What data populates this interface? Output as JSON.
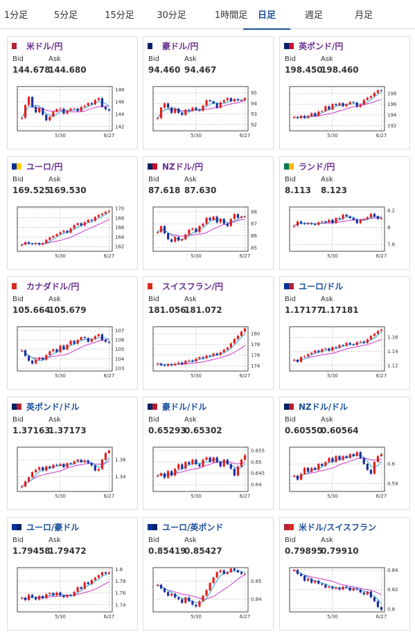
{
  "tabs": [
    {
      "label": "1分足",
      "active": false
    },
    {
      "label": "5分足",
      "active": false
    },
    {
      "label": "15分足",
      "active": false
    },
    {
      "label": "30分足",
      "active": false
    },
    {
      "label": "1時間足",
      "active": false
    },
    {
      "label": "日足",
      "active": true
    },
    {
      "label": "週足",
      "active": false
    },
    {
      "label": "月足",
      "active": false
    }
  ],
  "labels": {
    "bid": "Bid",
    "ask": "Ask"
  },
  "chart_data": [
    {
      "type": "candlestick",
      "pair": "米ドル/円",
      "flag": [
        "#b22234",
        "#ffffff"
      ],
      "bid": "144.678",
      "ask": "144.680",
      "x_ticks": [
        "5/30",
        "6/27"
      ],
      "y_ticks": [
        142,
        144,
        146,
        148
      ],
      "ylim": [
        141.3,
        148.5
      ],
      "values": [
        143.4,
        145.5,
        146.8,
        145.2,
        144.3,
        145.0,
        143.9,
        143.0,
        143.6,
        144.4,
        144.8,
        144.9,
        144.1,
        144.6,
        144.9,
        144.9,
        144.5,
        145.2,
        145.4,
        145.8,
        145.6,
        146.3,
        146.6,
        145.2,
        144.8,
        144.6
      ]
    },
    {
      "type": "candlestick",
      "pair": "豪ドル/円",
      "flag": [
        "#012169",
        "#ffffff"
      ],
      "bid": "94.460",
      "ask": "94.467",
      "x_ticks": [
        "5/30",
        "6/27"
      ],
      "y_ticks": [
        92,
        93,
        94,
        95
      ],
      "ylim": [
        91.4,
        95.6
      ],
      "values": [
        92.6,
        93.6,
        94.0,
        93.6,
        93.1,
        93.5,
        93.1,
        92.9,
        93.4,
        93.3,
        93.6,
        93.4,
        93.3,
        93.8,
        94.3,
        94.2,
        94.0,
        93.6,
        94.1,
        94.3,
        94.5,
        94.2,
        94.4,
        94.3,
        94.3,
        94.5
      ]
    },
    {
      "type": "candlestick",
      "pair": "英ポンド/円",
      "flag": [
        "#012169",
        "#c8102e"
      ],
      "bid": "198.450",
      "ask": "198.460",
      "x_ticks": [
        "5/30",
        "6/27"
      ],
      "y_ticks": [
        192,
        194,
        196,
        198
      ],
      "ylim": [
        191.0,
        199.3
      ],
      "values": [
        193.6,
        193.4,
        193.8,
        193.4,
        193.8,
        194.3,
        193.8,
        194.6,
        194.7,
        195.6,
        195.0,
        196.0,
        195.8,
        196.2,
        195.6,
        196.0,
        196.4,
        196.3,
        195.5,
        195.9,
        196.8,
        197.2,
        197.5,
        198.1,
        198.6,
        198.5
      ]
    },
    {
      "type": "candlestick",
      "pair": "ユーロ/円",
      "flag": [
        "#003399",
        "#ffcc00"
      ],
      "bid": "169.525",
      "ask": "169.530",
      "x_ticks": [
        "5/30",
        "6/27"
      ],
      "y_ticks": [
        162,
        164,
        166,
        168,
        170
      ],
      "ylim": [
        161.0,
        170.3
      ],
      "values": [
        162.4,
        162.9,
        162.6,
        162.5,
        162.7,
        162.4,
        162.7,
        163.4,
        163.9,
        164.2,
        164.6,
        165.0,
        165.3,
        164.9,
        165.8,
        166.5,
        166.9,
        166.4,
        167.1,
        167.6,
        167.4,
        168.2,
        168.6,
        168.9,
        169.3,
        169.5
      ]
    },
    {
      "type": "candlestick",
      "pair": "NZドル/円",
      "flag": [
        "#012169",
        "#c8102e"
      ],
      "bid": "87.618",
      "ask": "87.630",
      "x_ticks": [
        "5/30",
        "6/27"
      ],
      "y_ticks": [
        85,
        86,
        87,
        88
      ],
      "ylim": [
        84.7,
        88.4
      ],
      "values": [
        86.3,
        86.8,
        86.2,
        85.7,
        85.5,
        85.9,
        85.6,
        85.7,
        86.1,
        86.5,
        86.6,
        86.3,
        86.8,
        87.0,
        87.5,
        87.3,
        87.6,
        87.1,
        87.4,
        87.0,
        86.8,
        87.4,
        87.8,
        87.5,
        87.6,
        87.6
      ]
    },
    {
      "type": "candlestick",
      "pair": "ランド/円",
      "flag": [
        "#007a4d",
        "#ffb612"
      ],
      "bid": "8.113",
      "ask": "8.123",
      "x_ticks": [
        "5/30",
        "6/27"
      ],
      "y_ticks": [
        7.8,
        8.0,
        8.2
      ],
      "ylim": [
        7.72,
        8.24
      ],
      "values": [
        8.02,
        8.07,
        8.05,
        8.04,
        8.05,
        8.04,
        8.03,
        8.06,
        8.07,
        8.06,
        8.09,
        8.05,
        8.11,
        8.1,
        8.15,
        8.13,
        8.11,
        8.09,
        8.05,
        8.09,
        8.1,
        8.12,
        8.16,
        8.13,
        8.1,
        8.11
      ]
    },
    {
      "type": "candlestick",
      "pair": "カナダドル/円",
      "flag": [
        "#d52b1e",
        "#ffffff"
      ],
      "bid": "105.664",
      "ask": "105.679",
      "x_ticks": [
        "5/30",
        "6/27"
      ],
      "y_ticks": [
        103,
        104,
        105,
        106,
        107
      ],
      "ylim": [
        102.7,
        107.4
      ],
      "values": [
        104.9,
        104.3,
        103.8,
        103.5,
        103.9,
        104.1,
        103.9,
        104.4,
        104.8,
        105.0,
        104.7,
        105.4,
        105.0,
        105.5,
        105.9,
        105.6,
        106.0,
        106.3,
        106.2,
        105.8,
        106.1,
        106.4,
        106.6,
        106.0,
        105.8,
        105.7
      ]
    },
    {
      "type": "candlestick",
      "pair": "スイスフラン/円",
      "flag": [
        "#d52b1e",
        "#ffffff"
      ],
      "bid": "181.056",
      "ask": "181.072",
      "x_ticks": [
        "5/30",
        "6/27"
      ],
      "y_ticks": [
        174,
        176,
        178,
        180
      ],
      "ylim": [
        173.0,
        181.3
      ],
      "values": [
        174.4,
        174.1,
        174.0,
        174.3,
        174.1,
        174.4,
        174.6,
        174.3,
        174.9,
        175.0,
        174.8,
        175.3,
        175.6,
        175.4,
        175.9,
        175.8,
        176.3,
        176.0,
        176.5,
        177.0,
        177.4,
        178.2,
        179.0,
        179.6,
        180.4,
        181.0
      ]
    },
    {
      "type": "candlestick",
      "pair": "ユーロ/ドル",
      "flag": [
        "#003399",
        "#b22234"
      ],
      "bid": "1.17177",
      "ask": "1.17181",
      "x_ticks": [
        "5/30",
        "6/27"
      ],
      "y_ticks": [
        1.12,
        1.14,
        1.16
      ],
      "ylim": [
        1.112,
        1.175
      ],
      "values": [
        1.128,
        1.125,
        1.132,
        1.133,
        1.136,
        1.138,
        1.141,
        1.139,
        1.143,
        1.144,
        1.141,
        1.146,
        1.145,
        1.149,
        1.148,
        1.152,
        1.15,
        1.149,
        1.153,
        1.154,
        1.152,
        1.157,
        1.162,
        1.165,
        1.169,
        1.171
      ]
    },
    {
      "type": "candlestick",
      "pair": "英ポンド/ドル",
      "flag": [
        "#012169",
        "#b22234"
      ],
      "bid": "1.37163",
      "ask": "1.37173",
      "x_ticks": [
        "5/30",
        "6/27"
      ],
      "y_ticks": [
        1.34,
        1.36
      ],
      "ylim": [
        1.322,
        1.375
      ],
      "values": [
        1.328,
        1.334,
        1.339,
        1.345,
        1.348,
        1.351,
        1.347,
        1.352,
        1.35,
        1.354,
        1.353,
        1.355,
        1.351,
        1.356,
        1.355,
        1.358,
        1.36,
        1.357,
        1.359,
        1.356,
        1.353,
        1.347,
        1.349,
        1.36,
        1.368,
        1.371
      ]
    },
    {
      "type": "candlestick",
      "pair": "豪ドル/ドル",
      "flag": [
        "#012169",
        "#b22234"
      ],
      "bid": "0.65293",
      "ask": "0.65302",
      "x_ticks": [
        "5/30",
        "6/27"
      ],
      "y_ticks": [
        0.64,
        0.645,
        0.65,
        0.655
      ],
      "ylim": [
        0.637,
        0.6565
      ],
      "values": [
        0.644,
        0.645,
        0.643,
        0.646,
        0.644,
        0.647,
        0.649,
        0.647,
        0.65,
        0.649,
        0.651,
        0.649,
        0.648,
        0.651,
        0.652,
        0.65,
        0.652,
        0.65,
        0.648,
        0.651,
        0.649,
        0.647,
        0.644,
        0.648,
        0.651,
        0.653
      ]
    },
    {
      "type": "candlestick",
      "pair": "NZドル/ドル",
      "flag": [
        "#012169",
        "#b22234"
      ],
      "bid": "0.60550",
      "ask": "0.60564",
      "x_ticks": [
        "5/30",
        "6/27"
      ],
      "y_ticks": [
        0.59,
        0.6
      ],
      "ylim": [
        0.586,
        0.6085
      ],
      "values": [
        0.594,
        0.592,
        0.595,
        0.598,
        0.596,
        0.598,
        0.597,
        0.6,
        0.599,
        0.601,
        0.603,
        0.601,
        0.604,
        0.602,
        0.604,
        0.603,
        0.605,
        0.604,
        0.606,
        0.603,
        0.6,
        0.597,
        0.595,
        0.601,
        0.604,
        0.605
      ]
    },
    {
      "type": "candlestick",
      "pair": "ユーロ/豪ドル",
      "flag": [
        "#003399",
        "#012169"
      ],
      "bid": "1.79458",
      "ask": "1.79472",
      "x_ticks": [
        "5/30",
        "6/27"
      ],
      "y_ticks": [
        1.74,
        1.76,
        1.78,
        1.8
      ],
      "ylim": [
        1.728,
        1.803
      ],
      "values": [
        1.752,
        1.748,
        1.757,
        1.753,
        1.749,
        1.755,
        1.751,
        1.758,
        1.76,
        1.756,
        1.761,
        1.756,
        1.753,
        1.757,
        1.755,
        1.762,
        1.77,
        1.767,
        1.778,
        1.775,
        1.782,
        1.786,
        1.79,
        1.795,
        1.793,
        1.795
      ]
    },
    {
      "type": "candlestick",
      "pair": "ユーロ/英ポンド",
      "flag": [
        "#003399",
        "#012169"
      ],
      "bid": "0.85419",
      "ask": "0.85427",
      "x_ticks": [
        "5/30",
        "6/27"
      ],
      "y_ticks": [
        0.84,
        0.85
      ],
      "ylim": [
        0.833,
        0.8575
      ],
      "values": [
        0.848,
        0.846,
        0.844,
        0.842,
        0.843,
        0.841,
        0.84,
        0.838,
        0.841,
        0.839,
        0.837,
        0.836,
        0.839,
        0.842,
        0.845,
        0.849,
        0.852,
        0.855,
        0.856,
        0.854,
        0.855,
        0.857,
        0.856,
        0.855,
        0.854,
        0.854
      ]
    },
    {
      "type": "candlestick",
      "pair": "米ドル/スイスフラン",
      "flag": [
        "#b22234",
        "#d52b1e"
      ],
      "bid": "0.79895",
      "ask": "0.79910",
      "x_ticks": [
        "5/30",
        "6/27"
      ],
      "y_ticks": [
        0.8,
        0.82,
        0.84
      ],
      "ylim": [
        0.797,
        0.8425
      ],
      "values": [
        0.84,
        0.836,
        0.834,
        0.829,
        0.831,
        0.827,
        0.829,
        0.826,
        0.825,
        0.822,
        0.823,
        0.821,
        0.822,
        0.82,
        0.823,
        0.822,
        0.819,
        0.821,
        0.82,
        0.817,
        0.815,
        0.818,
        0.812,
        0.808,
        0.802,
        0.799
      ]
    }
  ]
}
